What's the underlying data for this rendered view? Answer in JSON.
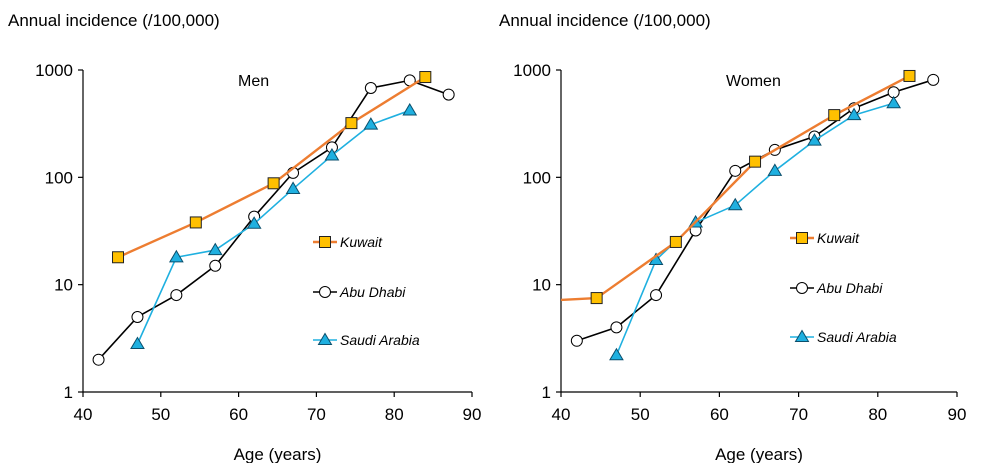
{
  "chart_data": [
    {
      "type": "line",
      "panel_label": "Men",
      "ylabel": "Annual incidence (/100,000)",
      "xlabel": "Age (years)",
      "xlim": [
        40,
        90
      ],
      "ylim": [
        1,
        1000
      ],
      "y_scale": "log",
      "x_ticks": [
        "40",
        "50",
        "60",
        "70",
        "80",
        "90"
      ],
      "y_ticks": [
        "1",
        "10",
        "100",
        "1000"
      ],
      "grid": false,
      "legend_position": "right",
      "series": [
        {
          "name": "Kuwait",
          "color": "#ED7D31",
          "marker": "square",
          "marker_fill": "#FFC000",
          "x": [
            44.5,
            54.5,
            64.5,
            74.5,
            84
          ],
          "y": [
            18,
            38,
            88,
            320,
            860
          ]
        },
        {
          "name": "Abu Dhabi",
          "color": "#000000",
          "marker": "circle",
          "marker_fill": "#FFFFFF",
          "x": [
            42,
            47,
            52,
            57,
            62,
            67,
            72,
            77,
            82,
            87
          ],
          "y": [
            2,
            5,
            8,
            15,
            43,
            110,
            190,
            680,
            800,
            590
          ]
        },
        {
          "name": "Saudi Arabia",
          "color": "#1FB0E0",
          "marker": "triangle",
          "marker_fill": "#1FB0E0",
          "x": [
            47,
            52,
            57,
            62,
            67,
            72,
            77,
            82
          ],
          "y": [
            2.8,
            18,
            21,
            37,
            78,
            160,
            310,
            420
          ]
        }
      ]
    },
    {
      "type": "line",
      "panel_label": "Women",
      "ylabel": "Annual incidence (/100,000)",
      "xlabel": "Age (years)",
      "xlim": [
        40,
        90
      ],
      "ylim": [
        1,
        1000
      ],
      "y_scale": "log",
      "x_ticks": [
        "40",
        "50",
        "60",
        "70",
        "80",
        "90"
      ],
      "y_ticks": [
        "1",
        "10",
        "100",
        "1000"
      ],
      "grid": false,
      "legend_position": "right",
      "series": [
        {
          "name": "Kuwait",
          "color": "#ED7D31",
          "marker": "square",
          "marker_fill": "#FFC000",
          "x": [
            40,
            44.5,
            54.5,
            64.5,
            74.5,
            84
          ],
          "y": [
            7.2,
            7.5,
            25,
            140,
            380,
            880
          ],
          "markers": [
            false,
            true,
            true,
            true,
            true,
            true
          ]
        },
        {
          "name": "Abu Dhabi",
          "color": "#000000",
          "marker": "circle",
          "marker_fill": "#FFFFFF",
          "x": [
            42,
            47,
            52,
            57,
            62,
            67,
            72,
            77,
            82,
            87
          ],
          "y": [
            3,
            4,
            8,
            32,
            115,
            180,
            240,
            440,
            620,
            810
          ]
        },
        {
          "name": "Saudi Arabia",
          "color": "#1FB0E0",
          "marker": "triangle",
          "marker_fill": "#1FB0E0",
          "x": [
            47,
            52,
            57,
            62,
            67,
            72,
            77,
            82
          ],
          "y": [
            2.2,
            17,
            38,
            55,
            115,
            220,
            380,
            490
          ]
        }
      ]
    }
  ]
}
